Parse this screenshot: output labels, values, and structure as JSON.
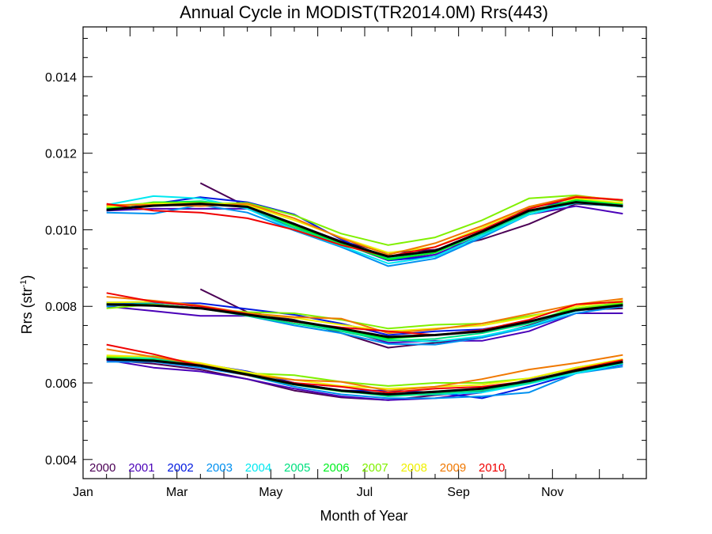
{
  "chart_data": {
    "type": "line",
    "title": "Annual Cycle in MODIST(TR2014.0M) Rrs(443)",
    "xlabel": "Month of Year",
    "ylabel": "Rrs (str",
    "ylabel_sup": "-1",
    "ylabel_close": ")",
    "xlim": [
      1,
      13
    ],
    "ylim": [
      0.0035,
      0.0153
    ],
    "x": [
      1.5,
      2.5,
      3.5,
      4.5,
      5.5,
      6.5,
      7.5,
      8.5,
      9.5,
      10.5,
      11.5,
      12.5
    ],
    "x_ticks": [
      {
        "value": 1,
        "label": "Jan"
      },
      {
        "value": 3,
        "label": "Mar"
      },
      {
        "value": 5,
        "label": "May"
      },
      {
        "value": 7,
        "label": "Jul"
      },
      {
        "value": 9,
        "label": "Sep"
      },
      {
        "value": 11,
        "label": "Nov"
      }
    ],
    "y_ticks": [
      {
        "value": 0.004,
        "label": "0.004"
      },
      {
        "value": 0.006,
        "label": "0.006"
      },
      {
        "value": 0.008,
        "label": "0.008"
      },
      {
        "value": 0.01,
        "label": "0.010"
      },
      {
        "value": 0.012,
        "label": "0.012"
      },
      {
        "value": 0.014,
        "label": "0.014"
      }
    ],
    "legend_position": "bottom-left",
    "series": [
      {
        "name": "2000",
        "color": "#4b0055",
        "upper": [
          null,
          null,
          0.01122,
          0.0106,
          0.01015,
          0.0097,
          0.0094,
          0.00948,
          0.00975,
          0.01015,
          0.01068,
          0.01062
        ],
        "middle": [
          null,
          null,
          0.00845,
          0.00785,
          0.00765,
          0.0073,
          0.00692,
          0.00705,
          0.00718,
          0.0075,
          0.0079,
          0.00795
        ],
        "lower": [
          0.0066,
          0.0065,
          0.00635,
          0.0061,
          0.0058,
          0.00562,
          0.00555,
          0.00568,
          0.00578,
          0.00605,
          0.0063,
          0.0065
        ]
      },
      {
        "name": "2001",
        "color": "#4a00b8",
        "upper": [
          0.0105,
          0.01055,
          0.01055,
          0.01055,
          0.01005,
          0.00965,
          0.0092,
          0.00935,
          0.00985,
          0.0104,
          0.01062,
          0.01042
        ],
        "middle": [
          0.008,
          0.00788,
          0.00775,
          0.00775,
          0.0076,
          0.0074,
          0.00705,
          0.0071,
          0.0071,
          0.00735,
          0.00782,
          0.00782
        ],
        "lower": [
          0.0066,
          0.0064,
          0.0063,
          0.0061,
          0.00585,
          0.00565,
          0.00555,
          0.0056,
          0.00575,
          0.0061,
          0.0064,
          0.0066
        ]
      },
      {
        "name": "2002",
        "color": "#0018e0",
        "upper": [
          0.0105,
          0.01068,
          0.01085,
          0.01072,
          0.0104,
          0.00975,
          0.0092,
          0.0093,
          0.00985,
          0.0106,
          0.01075,
          0.01065
        ],
        "middle": [
          0.0081,
          0.00808,
          0.00808,
          0.00793,
          0.00778,
          0.00755,
          0.00725,
          0.00735,
          0.0074,
          0.0076,
          0.0079,
          0.00805
        ],
        "lower": [
          0.00665,
          0.0066,
          0.0065,
          0.0063,
          0.006,
          0.0058,
          0.0058,
          0.00575,
          0.0056,
          0.0059,
          0.00625,
          0.00648
        ]
      },
      {
        "name": "2003",
        "color": "#0090f0",
        "upper": [
          0.01045,
          0.01042,
          0.01065,
          0.01045,
          0.00998,
          0.00955,
          0.00905,
          0.00925,
          0.0098,
          0.0104,
          0.01072,
          0.0106
        ],
        "middle": [
          0.008,
          0.0081,
          0.008,
          0.00775,
          0.0075,
          0.0073,
          0.00702,
          0.007,
          0.00718,
          0.00745,
          0.00782,
          0.008
        ],
        "lower": [
          0.00655,
          0.00655,
          0.0064,
          0.0062,
          0.0059,
          0.0057,
          0.0056,
          0.0056,
          0.00565,
          0.00575,
          0.00625,
          0.00643
        ]
      },
      {
        "name": "2004",
        "color": "#00e8f0",
        "upper": [
          0.01065,
          0.01088,
          0.01082,
          0.01055,
          0.01,
          0.00958,
          0.00912,
          0.0093,
          0.00985,
          0.0104,
          0.0107,
          0.0106
        ],
        "middle": [
          0.0081,
          0.00812,
          0.008,
          0.0078,
          0.0076,
          0.00738,
          0.00712,
          0.00708,
          0.00722,
          0.00748,
          0.00788,
          0.00805
        ],
        "lower": [
          0.00668,
          0.00665,
          0.0065,
          0.00625,
          0.00598,
          0.00578,
          0.00568,
          0.0057,
          0.00575,
          0.00598,
          0.00625,
          0.0065
        ]
      },
      {
        "name": "2005",
        "color": "#00e080",
        "upper": [
          0.01058,
          0.0107,
          0.01075,
          0.0106,
          0.01005,
          0.00962,
          0.00925,
          0.0094,
          0.0099,
          0.01045,
          0.01075,
          0.01068
        ],
        "middle": [
          0.00805,
          0.00805,
          0.00795,
          0.00775,
          0.00755,
          0.00735,
          0.0071,
          0.00715,
          0.0073,
          0.00755,
          0.00792,
          0.00805
        ],
        "lower": [
          0.00665,
          0.00662,
          0.00648,
          0.00625,
          0.00597,
          0.0058,
          0.00565,
          0.00572,
          0.0058,
          0.006,
          0.0063,
          0.00652
        ]
      },
      {
        "name": "2006",
        "color": "#00f020",
        "upper": [
          0.01055,
          0.01072,
          0.01072,
          0.01062,
          0.0101,
          0.00965,
          0.00922,
          0.0094,
          0.00995,
          0.0105,
          0.01078,
          0.01068
        ],
        "middle": [
          0.00805,
          0.00805,
          0.00795,
          0.0078,
          0.0076,
          0.0074,
          0.00715,
          0.00725,
          0.00735,
          0.0076,
          0.00795,
          0.00808
        ],
        "lower": [
          0.00665,
          0.0066,
          0.00645,
          0.0062,
          0.00595,
          0.00578,
          0.0057,
          0.00578,
          0.00585,
          0.00605,
          0.00632,
          0.00655
        ]
      },
      {
        "name": "2007",
        "color": "#80f000",
        "upper": [
          0.01062,
          0.0107,
          0.01068,
          0.0107,
          0.01038,
          0.0099,
          0.0096,
          0.0098,
          0.01025,
          0.01082,
          0.0109,
          0.01075
        ],
        "middle": [
          0.00795,
          0.00805,
          0.00795,
          0.00785,
          0.00782,
          0.00765,
          0.00742,
          0.00752,
          0.00755,
          0.00775,
          0.00795,
          0.0081
        ],
        "lower": [
          0.00668,
          0.0067,
          0.0065,
          0.00625,
          0.0062,
          0.00603,
          0.00592,
          0.006,
          0.006,
          0.00612,
          0.00638,
          0.00658
        ]
      },
      {
        "name": "2008",
        "color": "#f0f000",
        "upper": [
          0.0106,
          0.01068,
          0.0107,
          0.01065,
          0.01025,
          0.0098,
          0.0094,
          0.00955,
          0.01005,
          0.0106,
          0.01082,
          0.0107
        ],
        "middle": [
          0.0081,
          0.00812,
          0.008,
          0.00782,
          0.0077,
          0.00752,
          0.00735,
          0.00742,
          0.0075,
          0.00772,
          0.008,
          0.00815
        ],
        "lower": [
          0.00672,
          0.00668,
          0.00652,
          0.00628,
          0.00608,
          0.00592,
          0.00585,
          0.0059,
          0.00595,
          0.00612,
          0.0064,
          0.00662
        ]
      },
      {
        "name": "2009",
        "color": "#f07800",
        "upper": [
          0.01065,
          0.01065,
          0.01062,
          0.01068,
          0.0103,
          0.00978,
          0.00935,
          0.00965,
          0.0101,
          0.0106,
          0.01088,
          0.01078
        ],
        "middle": [
          0.00825,
          0.00815,
          0.00802,
          0.00782,
          0.00772,
          0.00768,
          0.0073,
          0.0074,
          0.00755,
          0.0078,
          0.00805,
          0.0082
        ],
        "lower": [
          0.00688,
          0.00668,
          0.00648,
          0.00622,
          0.00608,
          0.00603,
          0.0058,
          0.0059,
          0.0061,
          0.00635,
          0.00652,
          0.00673
        ]
      },
      {
        "name": "2010",
        "color": "#f00000",
        "upper": [
          0.01068,
          0.0105,
          0.01045,
          0.0103,
          0.01,
          0.0096,
          0.0093,
          0.00955,
          0.01,
          0.01055,
          0.01085,
          0.01078
        ],
        "middle": [
          0.00835,
          0.00812,
          0.008,
          0.0078,
          0.0076,
          0.00745,
          0.00735,
          0.00725,
          0.00738,
          0.00765,
          0.00805,
          0.00812
        ],
        "lower": [
          0.007,
          0.00675,
          0.00645,
          0.0062,
          0.006,
          0.0059,
          0.00575,
          0.00585,
          0.0059,
          0.00605,
          0.00635,
          0.0066
        ]
      }
    ],
    "climatology": {
      "color": "#000000",
      "upper": [
        0.01052,
        0.01063,
        0.01068,
        0.0106,
        0.01015,
        0.00968,
        0.0093,
        0.00945,
        0.00995,
        0.0105,
        0.01072,
        0.01062
      ],
      "middle": [
        0.00805,
        0.00802,
        0.00795,
        0.00778,
        0.00762,
        0.00742,
        0.0072,
        0.00725,
        0.00735,
        0.0076,
        0.0079,
        0.00803
      ],
      "lower": [
        0.00662,
        0.00658,
        0.00645,
        0.00622,
        0.00597,
        0.0058,
        0.0057,
        0.00577,
        0.00585,
        0.00605,
        0.00632,
        0.00655
      ]
    }
  }
}
